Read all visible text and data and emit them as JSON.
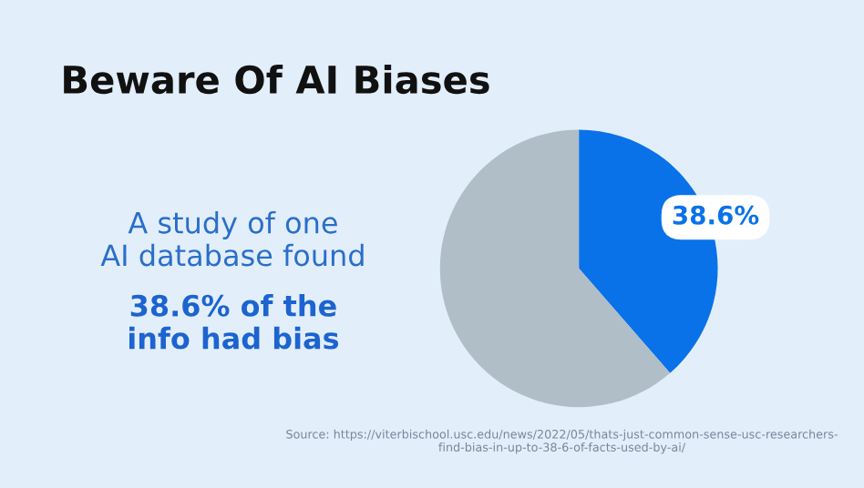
{
  "chart_data": {
    "type": "pie",
    "title": "Beware Of AI Biases",
    "categories": [
      null,
      null
    ],
    "values": [
      38.6,
      61.4
    ],
    "colors": [
      "#0a72e8",
      "#b0bec7"
    ],
    "value_labels": [
      "38.6%",
      null
    ],
    "annotations": [
      "A study of one AI database found",
      "38.6% of the info had bias",
      "Source: https://viterbischool.usc.edu/news/2022/05/thats-just-common-sense-usc-researchers-find-bias-in-up-to-38-6-of-facts-used-by-ai/"
    ]
  }
}
